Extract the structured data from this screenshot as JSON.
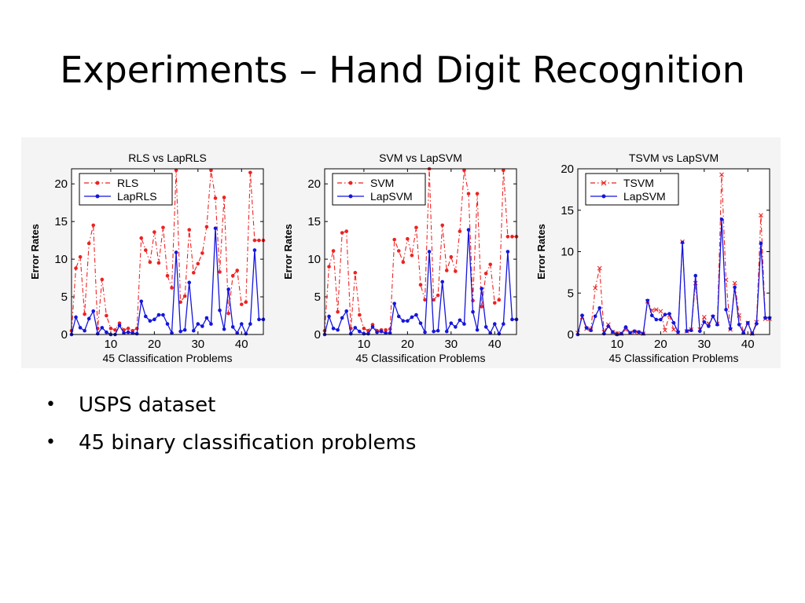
{
  "slide": {
    "title": "Experiments – Hand Digit Recognition",
    "bullets": [
      "USPS dataset",
      "45 binary classification problems"
    ]
  },
  "colors": {
    "red": "#ee2222",
    "blue": "#1515dd"
  },
  "chart_data": [
    {
      "type": "line",
      "title": "RLS vs LapRLS",
      "xlabel": "45 Classification Problems",
      "ylabel": "Error Rates",
      "xlim": [
        1,
        45
      ],
      "ylim": [
        0,
        22
      ],
      "xticks": [
        10,
        20,
        30,
        40
      ],
      "yticks": [
        0,
        5,
        10,
        15,
        20
      ],
      "legend": "top-left",
      "x": [
        1,
        2,
        3,
        4,
        5,
        6,
        7,
        8,
        9,
        10,
        11,
        12,
        13,
        14,
        15,
        16,
        17,
        18,
        19,
        20,
        21,
        22,
        23,
        24,
        25,
        26,
        27,
        28,
        29,
        30,
        31,
        32,
        33,
        34,
        35,
        36,
        37,
        38,
        39,
        40,
        41,
        42,
        43,
        44,
        45
      ],
      "series": [
        {
          "name": "RLS",
          "color": "#ee2222",
          "style": "dashdot",
          "marker": "dot",
          "values": [
            0.5,
            8.8,
            10.3,
            2.7,
            12.1,
            14.5,
            0.8,
            7.3,
            2.5,
            0.8,
            0.6,
            1.5,
            0.6,
            0.8,
            0.5,
            0.8,
            12.8,
            11.2,
            9.6,
            13.6,
            9.5,
            14.2,
            7.8,
            6.2,
            21.8,
            4.3,
            5.1,
            13.9,
            8.2,
            9.4,
            10.8,
            14.3,
            21.8,
            18.1,
            8.3,
            18.2,
            2.8,
            7.8,
            8.5,
            4.0,
            4.3,
            21.5,
            12.5,
            12.5,
            12.5
          ]
        },
        {
          "name": "LapRLS",
          "color": "#1515dd",
          "style": "solid",
          "marker": "dot",
          "values": [
            0.0,
            2.3,
            0.9,
            0.5,
            2.1,
            3.1,
            0.1,
            0.9,
            0.3,
            0.0,
            0.0,
            1.2,
            0.2,
            0.3,
            0.2,
            0.1,
            4.4,
            2.4,
            1.8,
            2.0,
            2.6,
            2.6,
            1.4,
            0.2,
            10.9,
            0.4,
            0.6,
            6.9,
            0.5,
            1.4,
            1.1,
            2.2,
            1.4,
            14.1,
            3.2,
            0.7,
            6.0,
            1.0,
            0.2,
            1.4,
            0.1,
            1.4,
            11.2,
            2.0,
            2.0
          ]
        }
      ]
    },
    {
      "type": "line",
      "title": "SVM vs LapSVM",
      "xlabel": "45 Classification Problems",
      "ylabel": "Error Rates",
      "xlim": [
        1,
        45
      ],
      "ylim": [
        0,
        22
      ],
      "xticks": [
        10,
        20,
        30,
        40
      ],
      "yticks": [
        0,
        5,
        10,
        15,
        20
      ],
      "legend": "top-left",
      "x": [
        1,
        2,
        3,
        4,
        5,
        6,
        7,
        8,
        9,
        10,
        11,
        12,
        13,
        14,
        15,
        16,
        17,
        18,
        19,
        20,
        21,
        22,
        23,
        24,
        25,
        26,
        27,
        28,
        29,
        30,
        31,
        32,
        33,
        34,
        35,
        36,
        37,
        38,
        39,
        40,
        41,
        42,
        43,
        44,
        45
      ],
      "series": [
        {
          "name": "SVM",
          "color": "#ee2222",
          "style": "dashdot",
          "marker": "dot",
          "values": [
            0.5,
            9.0,
            11.1,
            3.0,
            13.5,
            13.7,
            0.8,
            8.2,
            2.6,
            0.8,
            0.5,
            1.3,
            0.5,
            0.6,
            0.6,
            0.7,
            12.6,
            11.1,
            9.6,
            12.7,
            10.5,
            14.2,
            6.6,
            4.6,
            22.0,
            4.6,
            5.2,
            14.5,
            8.5,
            10.3,
            8.4,
            13.7,
            21.8,
            18.7,
            4.5,
            18.7,
            3.7,
            8.1,
            9.3,
            4.2,
            4.6,
            21.8,
            13.0,
            13.0,
            13.0
          ]
        },
        {
          "name": "LapSVM",
          "color": "#1515dd",
          "style": "solid",
          "marker": "dot",
          "values": [
            0.0,
            2.4,
            0.8,
            0.6,
            2.2,
            3.1,
            0.1,
            0.9,
            0.4,
            0.1,
            0.1,
            1.0,
            0.3,
            0.4,
            0.2,
            0.2,
            4.1,
            2.4,
            1.8,
            1.8,
            2.3,
            2.6,
            1.5,
            0.3,
            11.0,
            0.4,
            0.5,
            7.0,
            0.4,
            1.5,
            1.0,
            1.9,
            1.4,
            13.9,
            3.0,
            0.6,
            6.1,
            1.0,
            0.2,
            1.4,
            0.1,
            1.4,
            11.0,
            2.0,
            2.0
          ]
        }
      ]
    },
    {
      "type": "line",
      "title": "TSVM vs LapSVM",
      "xlabel": "45 Classification Problems",
      "ylabel": "Error Rates",
      "xlim": [
        1,
        45
      ],
      "ylim": [
        0,
        20
      ],
      "xticks": [
        10,
        20,
        30,
        40
      ],
      "yticks": [
        0,
        5,
        10,
        15,
        20
      ],
      "legend": "top-left",
      "x": [
        1,
        2,
        3,
        4,
        5,
        6,
        7,
        8,
        9,
        10,
        11,
        12,
        13,
        14,
        15,
        16,
        17,
        18,
        19,
        20,
        21,
        22,
        23,
        24,
        25,
        26,
        27,
        28,
        29,
        30,
        31,
        32,
        33,
        34,
        35,
        36,
        37,
        38,
        39,
        40,
        41,
        42,
        43,
        44,
        45
      ],
      "series": [
        {
          "name": "TSVM",
          "color": "#ee2222",
          "style": "dashdot",
          "marker": "x",
          "values": [
            0.2,
            2.1,
            0.7,
            0.6,
            5.6,
            8.0,
            0.3,
            1.2,
            0.3,
            0.1,
            0.1,
            0.6,
            0.2,
            0.3,
            0.2,
            0.1,
            4.0,
            2.9,
            3.0,
            2.8,
            0.5,
            2.3,
            0.6,
            0.2,
            11.2,
            0.4,
            0.6,
            6.2,
            0.6,
            2.1,
            1.3,
            2.1,
            1.3,
            19.3,
            6.6,
            0.6,
            6.2,
            2.3,
            0.3,
            1.4,
            0.1,
            1.5,
            14.4,
            1.9,
            1.9
          ]
        },
        {
          "name": "LapSVM",
          "color": "#1515dd",
          "style": "solid",
          "marker": "dot",
          "values": [
            0.0,
            2.3,
            0.8,
            0.5,
            2.2,
            3.2,
            0.1,
            1.0,
            0.3,
            0.0,
            0.1,
            0.9,
            0.2,
            0.4,
            0.3,
            0.1,
            4.1,
            2.3,
            1.8,
            1.8,
            2.4,
            2.5,
            1.4,
            0.3,
            11.1,
            0.4,
            0.5,
            7.1,
            0.4,
            1.5,
            1.0,
            2.2,
            1.2,
            13.9,
            3.0,
            0.7,
            5.7,
            1.2,
            0.2,
            1.4,
            0.1,
            1.3,
            11.0,
            2.0,
            2.0
          ]
        }
      ]
    }
  ]
}
